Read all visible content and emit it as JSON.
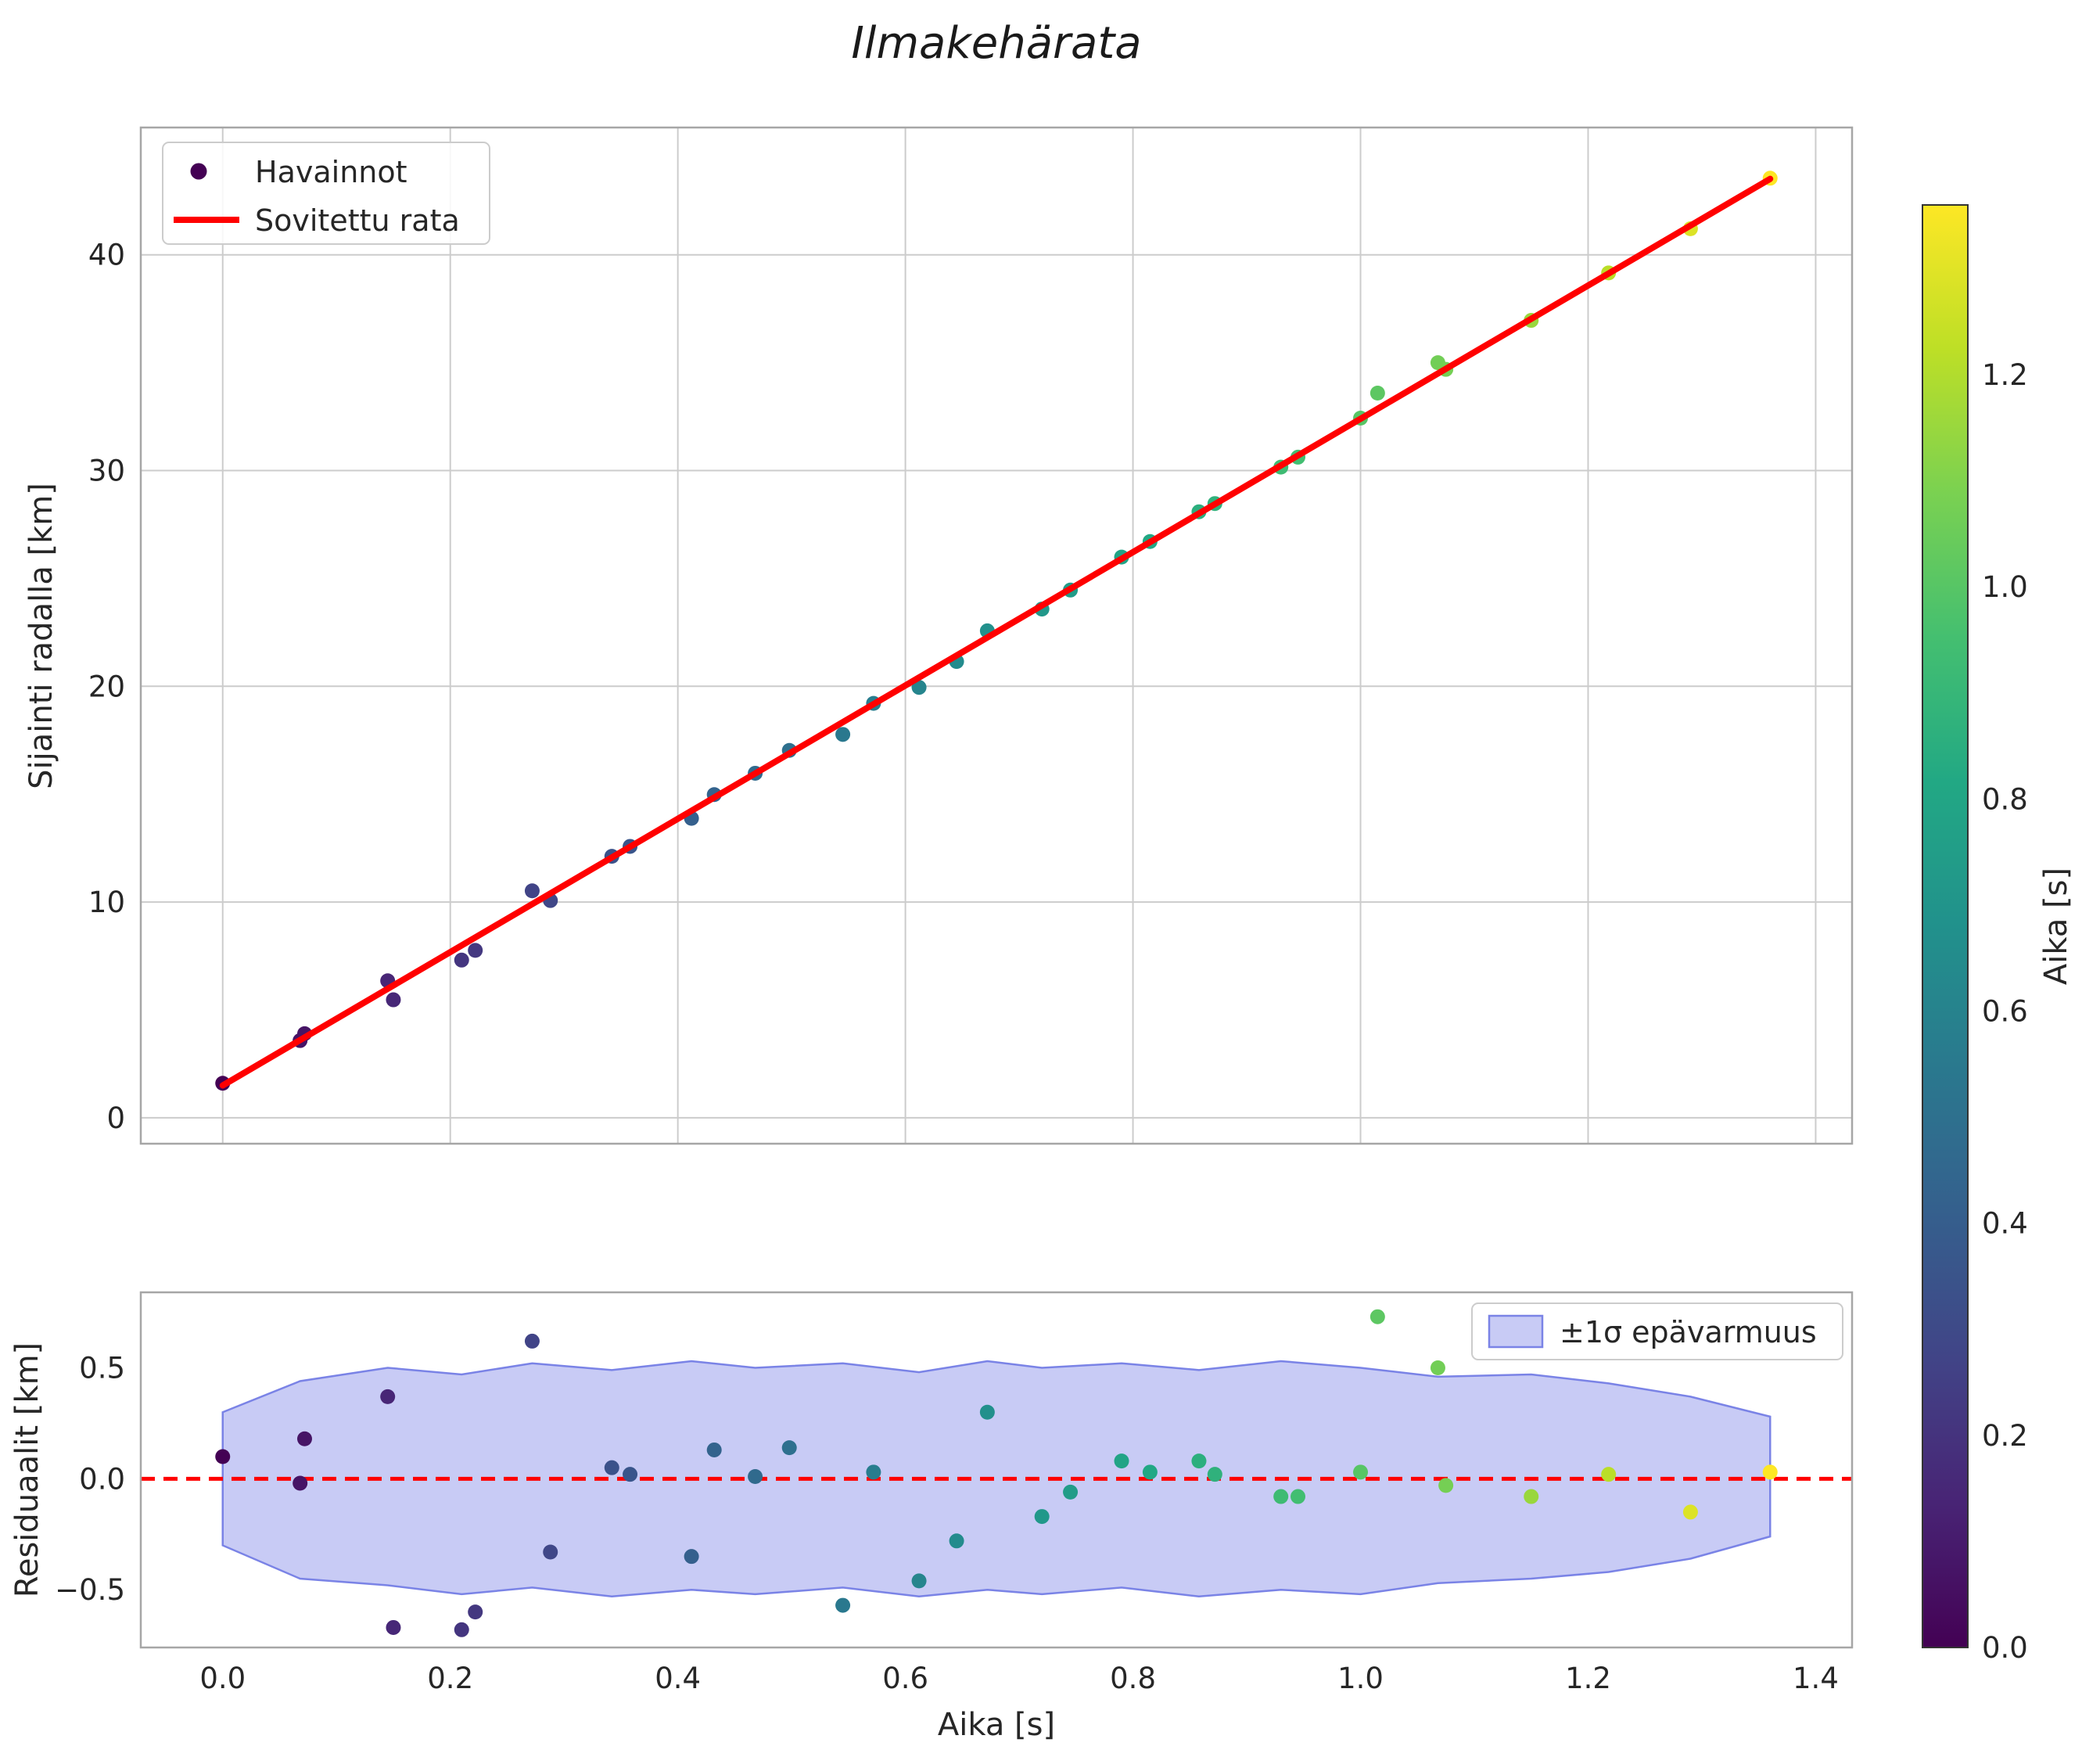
{
  "title": "Ilmakehärata",
  "axes": {
    "main": {
      "ylabel": "Sijainti radalla [km]",
      "yticks": {
        "values": [
          0,
          10,
          20,
          30,
          40
        ],
        "labels": [
          "0",
          "10",
          "20",
          "30",
          "40"
        ]
      },
      "xticks": {
        "values": [
          0.0,
          0.2,
          0.4,
          0.6,
          0.8,
          1.0,
          1.2,
          1.4
        ],
        "labels": []
      },
      "legend": {
        "scatter_label": "Havainnot",
        "line_label": "Sovitettu rata"
      }
    },
    "residual": {
      "ylabel": "Residuaalit [km]",
      "xlabel": "Aika [s]",
      "yticks": {
        "values": [
          -0.5,
          0.0,
          0.5
        ],
        "labels": [
          "−0.5",
          "0.0",
          "0.5"
        ]
      },
      "xticks": {
        "values": [
          0.0,
          0.2,
          0.4,
          0.6,
          0.8,
          1.0,
          1.2,
          1.4
        ],
        "labels": [
          "0.0",
          "0.2",
          "0.4",
          "0.6",
          "0.8",
          "1.0",
          "1.2",
          "1.4"
        ]
      },
      "legend": {
        "band_label": "±1σ epävarmuus"
      }
    }
  },
  "colorbar": {
    "label": "Aika [s]",
    "vmin": 0.0,
    "vmax": 1.36,
    "ticks": {
      "values": [
        0.0,
        0.2,
        0.4,
        0.6,
        0.8,
        1.0,
        1.2
      ],
      "labels": [
        "0.0",
        "0.2",
        "0.4",
        "0.6",
        "0.8",
        "1.0",
        "1.2"
      ]
    }
  },
  "style": {
    "fit_line_color": "#ff0000",
    "zero_line_color": "#ff0000",
    "band_fill": "#9ba1ec",
    "band_edge": "#7a83e6",
    "grid_color": "#cccccc",
    "spine_color": "#a6a6a6",
    "legend_marker_color": "#440154",
    "colormap": "viridis"
  },
  "chart_data": [
    {
      "type": "scatter",
      "title": "Ilmakehärata",
      "xlabel": "Aika [s]",
      "ylabel": "Sijainti radalla [km]",
      "xlim": [
        -0.072,
        1.432
      ],
      "ylim": [
        -1.2,
        45.9
      ],
      "grid": true,
      "legend": [
        "Havainnot",
        "Sovitettu rata"
      ],
      "colormap": "viridis",
      "color_by": "x",
      "vmin": 0.0,
      "vmax": 1.36,
      "x": [
        0.0,
        0.068,
        0.072,
        0.145,
        0.15,
        0.21,
        0.222,
        0.272,
        0.288,
        0.342,
        0.358,
        0.412,
        0.432,
        0.468,
        0.498,
        0.545,
        0.572,
        0.612,
        0.645,
        0.672,
        0.72,
        0.745,
        0.79,
        0.815,
        0.858,
        0.872,
        0.93,
        0.945,
        1.0,
        1.015,
        1.068,
        1.075,
        1.15,
        1.218,
        1.29,
        1.36
      ],
      "y": [
        1.6,
        3.58,
        3.9,
        6.35,
        5.47,
        7.31,
        7.76,
        10.52,
        10.07,
        12.12,
        12.58,
        13.88,
        14.98,
        15.97,
        17.03,
        17.77,
        19.21,
        19.95,
        21.15,
        22.57,
        23.58,
        24.46,
        25.99,
        26.71,
        28.09,
        28.47,
        30.16,
        30.62,
        32.43,
        33.59,
        35.0,
        34.69,
        36.96,
        39.16,
        41.21,
        43.55
      ],
      "fit_line": {
        "type": "line",
        "label": "Sovitettu rata",
        "x": [
          0.0,
          1.36
        ],
        "y": [
          1.5,
          43.52
        ]
      }
    },
    {
      "type": "scatter",
      "xlabel": "Aika [s]",
      "ylabel": "Residuaalit [km]",
      "xlim": [
        -0.072,
        1.432
      ],
      "ylim": [
        -0.76,
        0.84
      ],
      "grid": false,
      "zero_line": 0.0,
      "colormap": "viridis",
      "color_by": "x",
      "vmin": 0.0,
      "vmax": 1.36,
      "x": [
        0.0,
        0.068,
        0.072,
        0.145,
        0.15,
        0.21,
        0.222,
        0.272,
        0.288,
        0.342,
        0.358,
        0.412,
        0.432,
        0.468,
        0.498,
        0.545,
        0.572,
        0.612,
        0.645,
        0.672,
        0.72,
        0.745,
        0.79,
        0.815,
        0.858,
        0.872,
        0.93,
        0.945,
        1.0,
        1.015,
        1.068,
        1.075,
        1.15,
        1.218,
        1.29,
        1.36
      ],
      "y": [
        0.1,
        -0.02,
        0.18,
        0.37,
        -0.67,
        -0.68,
        -0.6,
        0.62,
        -0.33,
        0.05,
        0.02,
        -0.35,
        0.13,
        0.01,
        0.14,
        -0.57,
        0.03,
        -0.46,
        -0.28,
        0.3,
        -0.17,
        -0.06,
        0.08,
        0.03,
        0.08,
        0.02,
        -0.08,
        -0.08,
        0.03,
        0.73,
        0.5,
        -0.03,
        -0.08,
        0.02,
        -0.15,
        0.03
      ],
      "band": {
        "label": "±1σ epävarmuus",
        "x": [
          0.0,
          0.068,
          0.145,
          0.21,
          0.272,
          0.342,
          0.412,
          0.468,
          0.545,
          0.612,
          0.672,
          0.72,
          0.79,
          0.858,
          0.93,
          1.0,
          1.068,
          1.15,
          1.218,
          1.29,
          1.36
        ],
        "upper": [
          0.3,
          0.44,
          0.5,
          0.47,
          0.52,
          0.49,
          0.53,
          0.5,
          0.52,
          0.48,
          0.53,
          0.5,
          0.52,
          0.49,
          0.53,
          0.5,
          0.46,
          0.47,
          0.43,
          0.37,
          0.28
        ],
        "lower": [
          -0.3,
          -0.45,
          -0.48,
          -0.52,
          -0.49,
          -0.53,
          -0.5,
          -0.52,
          -0.49,
          -0.53,
          -0.5,
          -0.52,
          -0.49,
          -0.53,
          -0.5,
          -0.52,
          -0.47,
          -0.45,
          -0.42,
          -0.36,
          -0.26
        ]
      }
    }
  ]
}
